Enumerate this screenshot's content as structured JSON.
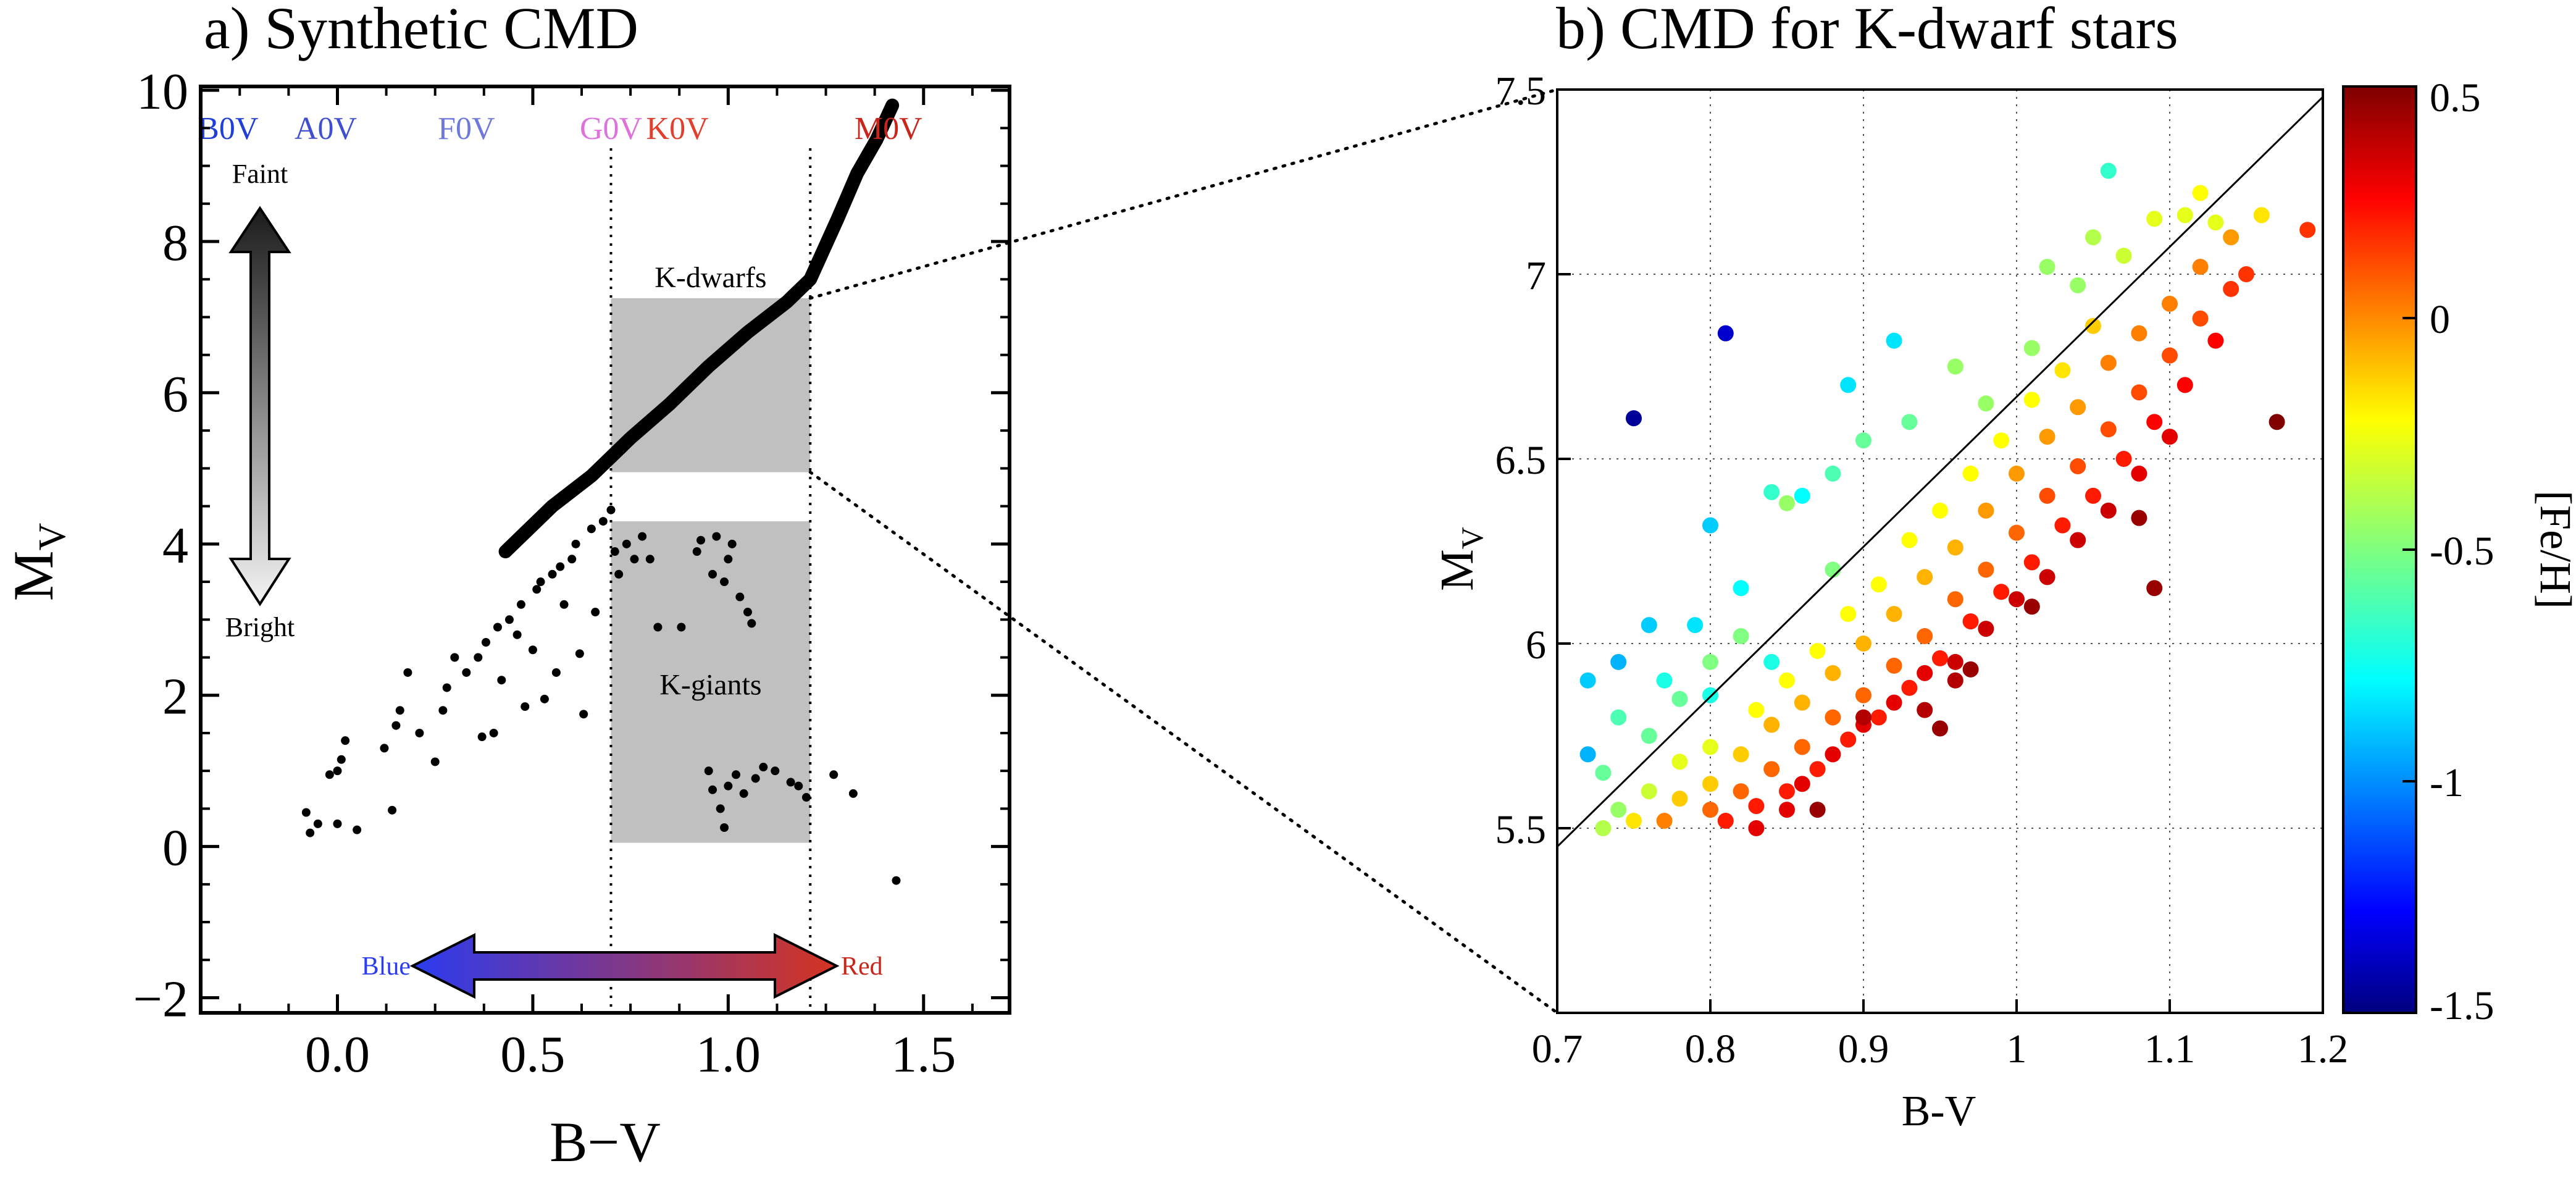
{
  "chart_data": [
    {
      "type": "scatter",
      "title": "a) Synthetic CMD",
      "xlabel": "B−V",
      "ylabel_main": "M",
      "ylabel_sub": "V",
      "xlim": [
        -0.35,
        1.72
      ],
      "ylim": [
        -2.2,
        10.05
      ],
      "xticks": [
        0.0,
        0.5,
        1.0,
        1.5
      ],
      "xtick_labels": [
        "0.0",
        "0.5",
        "1.0",
        "1.5"
      ],
      "yticks": [
        -2,
        0,
        2,
        4,
        6,
        8,
        10
      ],
      "ytick_labels": [
        "−2",
        "0",
        "2",
        "4",
        "6",
        "8",
        "10"
      ],
      "spectral_types": [
        {
          "label": "B0V",
          "x": -0.28,
          "color": "#1f3fd6"
        },
        {
          "label": "A0V",
          "x": -0.03,
          "color": "#3f4fd0"
        },
        {
          "label": "F0V",
          "x": 0.33,
          "color": "#6f78dc"
        },
        {
          "label": "G0V",
          "x": 0.7,
          "color": "#dd72dd"
        },
        {
          "label": "K0V",
          "x": 0.87,
          "color": "#e1402e"
        },
        {
          "label": "M0V",
          "x": 1.41,
          "color": "#c8251b"
        }
      ],
      "vertical_lines_x": [
        0.7,
        1.21
      ],
      "regions": [
        {
          "label": "K-dwarfs",
          "x": [
            0.7,
            1.21
          ],
          "y": [
            4.95,
            7.25
          ]
        },
        {
          "label": "K-giants",
          "x": [
            0.7,
            1.21
          ],
          "y": [
            0.05,
            4.3
          ]
        }
      ],
      "brightness_arrow": {
        "top_label": "Faint",
        "bottom_label": "Bright"
      },
      "color_arrow": {
        "left_label": "Blue",
        "right_label": "Red"
      },
      "main_sequence_track": [
        [
          0.43,
          3.9
        ],
        [
          0.55,
          4.5
        ],
        [
          0.65,
          4.9
        ],
        [
          0.75,
          5.4
        ],
        [
          0.85,
          5.85
        ],
        [
          0.95,
          6.35
        ],
        [
          1.05,
          6.8
        ],
        [
          1.15,
          7.2
        ],
        [
          1.21,
          7.5
        ],
        [
          1.28,
          8.3
        ],
        [
          1.33,
          8.9
        ],
        [
          1.38,
          9.35
        ],
        [
          1.42,
          9.8
        ]
      ],
      "points": [
        [
          -0.08,
          0.45
        ],
        [
          -0.07,
          0.18
        ],
        [
          -0.05,
          0.3
        ],
        [
          -0.02,
          0.95
        ],
        [
          0.0,
          1.0
        ],
        [
          0.01,
          1.15
        ],
        [
          0.02,
          1.4
        ],
        [
          0.0,
          0.3
        ],
        [
          0.05,
          0.22
        ],
        [
          0.12,
          1.3
        ],
        [
          0.14,
          0.48
        ],
        [
          0.15,
          1.6
        ],
        [
          0.16,
          1.8
        ],
        [
          0.18,
          2.3
        ],
        [
          0.21,
          1.5
        ],
        [
          0.25,
          1.12
        ],
        [
          0.27,
          1.8
        ],
        [
          0.28,
          2.1
        ],
        [
          0.3,
          2.5
        ],
        [
          0.33,
          2.3
        ],
        [
          0.36,
          2.5
        ],
        [
          0.37,
          1.45
        ],
        [
          0.38,
          2.7
        ],
        [
          0.4,
          1.5
        ],
        [
          0.41,
          2.9
        ],
        [
          0.42,
          2.2
        ],
        [
          0.44,
          3.0
        ],
        [
          0.46,
          2.8
        ],
        [
          0.47,
          3.2
        ],
        [
          0.48,
          1.85
        ],
        [
          0.5,
          2.6
        ],
        [
          0.51,
          3.4
        ],
        [
          0.53,
          1.95
        ],
        [
          0.55,
          3.6
        ],
        [
          0.56,
          2.3
        ],
        [
          0.58,
          3.2
        ],
        [
          0.6,
          3.8
        ],
        [
          0.62,
          2.55
        ],
        [
          0.63,
          1.75
        ],
        [
          0.65,
          4.2
        ],
        [
          0.66,
          3.1
        ],
        [
          0.68,
          4.3
        ],
        [
          0.7,
          4.45
        ],
        [
          0.71,
          3.9
        ],
        [
          0.72,
          3.6
        ],
        [
          0.74,
          4.0
        ],
        [
          0.76,
          3.8
        ],
        [
          0.78,
          4.1
        ],
        [
          0.8,
          3.8
        ],
        [
          0.82,
          2.9
        ],
        [
          0.88,
          2.9
        ],
        [
          0.92,
          3.9
        ],
        [
          0.93,
          4.05
        ],
        [
          0.96,
          3.6
        ],
        [
          0.97,
          4.1
        ],
        [
          0.99,
          3.5
        ],
        [
          1.0,
          3.8
        ],
        [
          1.01,
          4.0
        ],
        [
          1.03,
          3.3
        ],
        [
          1.05,
          3.1
        ],
        [
          1.06,
          2.95
        ],
        [
          0.95,
          1.0
        ],
        [
          0.96,
          0.75
        ],
        [
          0.98,
          0.5
        ],
        [
          0.99,
          0.25
        ],
        [
          1.0,
          0.8
        ],
        [
          1.02,
          0.95
        ],
        [
          1.04,
          0.7
        ],
        [
          1.07,
          0.9
        ],
        [
          1.09,
          1.05
        ],
        [
          1.12,
          1.0
        ],
        [
          1.16,
          0.85
        ],
        [
          1.18,
          0.8
        ],
        [
          1.2,
          0.65
        ],
        [
          1.27,
          0.95
        ],
        [
          1.32,
          0.7
        ],
        [
          1.43,
          -0.45
        ],
        [
          0.52,
          3.5
        ],
        [
          0.57,
          3.7
        ],
        [
          0.61,
          4.0
        ]
      ]
    },
    {
      "type": "scatter",
      "title": "b) CMD for K-dwarf stars",
      "xlabel": "B-V",
      "ylabel_main": "M",
      "ylabel_sub": "V",
      "xlim": [
        0.7,
        1.2
      ],
      "ylim": [
        5.0,
        7.5
      ],
      "xticks": [
        0.7,
        0.8,
        0.9,
        1.0,
        1.1,
        1.2
      ],
      "xtick_labels": [
        "0.7",
        "0.8",
        "0.9",
        "1",
        "1.1",
        "1.2"
      ],
      "yticks": [
        5.5,
        6.0,
        6.5,
        7.0,
        7.5
      ],
      "ytick_labels": [
        "5.5",
        "6",
        "6.5",
        "7",
        "7.5"
      ],
      "grid": true,
      "fit_line": [
        [
          0.7,
          5.45
        ],
        [
          1.2,
          7.48
        ]
      ],
      "colorbar": {
        "label": "[Fe/H]",
        "range": [
          -1.5,
          0.5
        ],
        "ticks": [
          0.5,
          0.0,
          -0.5,
          -1.0,
          -1.5
        ],
        "tick_labels": [
          "0.5",
          "0",
          "-0.5",
          "-1",
          "-1.5"
        ]
      },
      "points": [
        [
          0.75,
          6.61,
          -1.45
        ],
        [
          0.81,
          6.84,
          -1.35
        ],
        [
          0.72,
          5.9,
          -0.85
        ],
        [
          0.72,
          5.7,
          -0.9
        ],
        [
          0.74,
          5.95,
          -0.9
        ],
        [
          0.76,
          6.05,
          -0.85
        ],
        [
          0.79,
          6.05,
          -0.8
        ],
        [
          0.8,
          6.32,
          -0.85
        ],
        [
          0.82,
          6.15,
          -0.75
        ],
        [
          0.89,
          6.7,
          -0.8
        ],
        [
          0.92,
          6.82,
          -0.8
        ],
        [
          1.06,
          7.28,
          -0.65
        ],
        [
          0.84,
          6.41,
          -0.65
        ],
        [
          0.88,
          6.46,
          -0.6
        ],
        [
          0.85,
          6.38,
          -0.45
        ],
        [
          0.9,
          6.55,
          -0.55
        ],
        [
          0.93,
          6.6,
          -0.55
        ],
        [
          0.96,
          6.75,
          -0.45
        ],
        [
          0.98,
          6.65,
          -0.45
        ],
        [
          1.01,
          6.8,
          -0.45
        ],
        [
          1.02,
          7.02,
          -0.45
        ],
        [
          1.04,
          6.97,
          -0.45
        ],
        [
          1.05,
          7.1,
          -0.4
        ],
        [
          1.07,
          7.05,
          -0.35
        ],
        [
          1.09,
          7.15,
          -0.3
        ],
        [
          1.11,
          7.16,
          -0.3
        ],
        [
          1.12,
          7.22,
          -0.25
        ],
        [
          0.73,
          5.65,
          -0.55
        ],
        [
          0.74,
          5.8,
          -0.6
        ],
        [
          0.76,
          5.75,
          -0.55
        ],
        [
          0.78,
          5.85,
          -0.55
        ],
        [
          0.8,
          5.95,
          -0.5
        ],
        [
          0.82,
          6.02,
          -0.5
        ],
        [
          0.74,
          5.55,
          -0.45
        ],
        [
          0.73,
          5.5,
          -0.4
        ],
        [
          0.76,
          5.6,
          -0.35
        ],
        [
          0.78,
          5.68,
          -0.3
        ],
        [
          0.8,
          5.72,
          -0.3
        ],
        [
          0.83,
          5.82,
          -0.25
        ],
        [
          0.85,
          5.9,
          -0.25
        ],
        [
          0.87,
          5.98,
          -0.25
        ],
        [
          0.89,
          6.08,
          -0.25
        ],
        [
          0.91,
          6.16,
          -0.25
        ],
        [
          0.93,
          6.28,
          -0.25
        ],
        [
          0.95,
          6.36,
          -0.25
        ],
        [
          0.97,
          6.46,
          -0.25
        ],
        [
          0.99,
          6.55,
          -0.25
        ],
        [
          1.01,
          6.66,
          -0.25
        ],
        [
          1.03,
          6.74,
          -0.2
        ],
        [
          1.05,
          6.86,
          -0.15
        ],
        [
          0.75,
          5.52,
          -0.2
        ],
        [
          0.78,
          5.58,
          -0.15
        ],
        [
          0.8,
          5.62,
          -0.15
        ],
        [
          0.82,
          5.7,
          -0.15
        ],
        [
          0.84,
          5.78,
          -0.1
        ],
        [
          0.86,
          5.84,
          -0.1
        ],
        [
          0.88,
          5.92,
          -0.1
        ],
        [
          0.9,
          6.0,
          -0.1
        ],
        [
          0.92,
          6.08,
          -0.1
        ],
        [
          0.94,
          6.18,
          -0.1
        ],
        [
          0.96,
          6.26,
          -0.1
        ],
        [
          0.98,
          6.36,
          -0.05
        ],
        [
          1.0,
          6.46,
          -0.05
        ],
        [
          1.02,
          6.56,
          -0.05
        ],
        [
          1.04,
          6.64,
          -0.05
        ],
        [
          1.06,
          6.76,
          0.0
        ],
        [
          1.08,
          6.84,
          0.0
        ],
        [
          1.1,
          6.92,
          0.0
        ],
        [
          1.12,
          7.02,
          0.0
        ],
        [
          1.14,
          7.1,
          -0.05
        ],
        [
          0.77,
          5.52,
          0.0
        ],
        [
          0.8,
          5.55,
          0.05
        ],
        [
          0.82,
          5.6,
          0.05
        ],
        [
          0.84,
          5.66,
          0.05
        ],
        [
          0.86,
          5.72,
          0.05
        ],
        [
          0.88,
          5.8,
          0.05
        ],
        [
          0.9,
          5.86,
          0.05
        ],
        [
          0.92,
          5.94,
          0.05
        ],
        [
          0.94,
          6.02,
          0.05
        ],
        [
          0.96,
          6.12,
          0.05
        ],
        [
          0.98,
          6.2,
          0.05
        ],
        [
          1.0,
          6.3,
          0.05
        ],
        [
          1.02,
          6.4,
          0.1
        ],
        [
          1.04,
          6.48,
          0.1
        ],
        [
          1.06,
          6.58,
          0.1
        ],
        [
          1.08,
          6.68,
          0.1
        ],
        [
          1.1,
          6.78,
          0.1
        ],
        [
          1.12,
          6.88,
          0.1
        ],
        [
          1.14,
          6.96,
          0.15
        ],
        [
          1.15,
          7.0,
          0.15
        ],
        [
          0.81,
          5.52,
          0.2
        ],
        [
          0.83,
          5.56,
          0.2
        ],
        [
          0.85,
          5.6,
          0.2
        ],
        [
          0.87,
          5.66,
          0.2
        ],
        [
          0.89,
          5.74,
          0.2
        ],
        [
          0.91,
          5.8,
          0.2
        ],
        [
          0.93,
          5.88,
          0.2
        ],
        [
          0.95,
          5.96,
          0.2
        ],
        [
          0.97,
          6.06,
          0.2
        ],
        [
          0.99,
          6.14,
          0.2
        ],
        [
          1.01,
          6.22,
          0.2
        ],
        [
          1.03,
          6.32,
          0.2
        ],
        [
          1.05,
          6.4,
          0.2
        ],
        [
          1.07,
          6.5,
          0.2
        ],
        [
          1.09,
          6.6,
          0.25
        ],
        [
          1.11,
          6.7,
          0.25
        ],
        [
          1.13,
          6.82,
          0.25
        ],
        [
          0.83,
          5.5,
          0.3
        ],
        [
          0.85,
          5.55,
          0.3
        ],
        [
          0.86,
          5.62,
          0.3
        ],
        [
          0.88,
          5.7,
          0.3
        ],
        [
          0.9,
          5.78,
          0.3
        ],
        [
          0.92,
          5.84,
          0.3
        ],
        [
          0.94,
          5.92,
          0.3
        ],
        [
          0.96,
          5.95,
          0.35
        ],
        [
          0.98,
          6.04,
          0.35
        ],
        [
          1.0,
          6.12,
          0.35
        ],
        [
          1.02,
          6.18,
          0.35
        ],
        [
          1.04,
          6.28,
          0.35
        ],
        [
          1.06,
          6.36,
          0.35
        ],
        [
          1.08,
          6.46,
          0.3
        ],
        [
          1.1,
          6.56,
          0.3
        ],
        [
          0.9,
          5.8,
          0.4
        ],
        [
          0.94,
          5.82,
          0.4
        ],
        [
          0.96,
          5.9,
          0.4
        ],
        [
          0.95,
          5.77,
          0.45
        ],
        [
          0.97,
          5.93,
          0.45
        ],
        [
          1.01,
          6.1,
          0.45
        ],
        [
          1.08,
          6.34,
          0.45
        ],
        [
          1.09,
          6.15,
          0.45
        ],
        [
          0.87,
          5.55,
          0.45
        ],
        [
          1.17,
          6.6,
          0.5
        ],
        [
          1.19,
          7.12,
          0.15
        ],
        [
          1.16,
          7.16,
          -0.2
        ],
        [
          1.13,
          7.14,
          -0.3
        ],
        [
          0.86,
          6.4,
          -0.75
        ],
        [
          0.88,
          6.2,
          -0.5
        ],
        [
          0.84,
          5.95,
          -0.7
        ],
        [
          0.8,
          5.86,
          -0.7
        ],
        [
          0.77,
          5.9,
          -0.7
        ]
      ]
    }
  ]
}
